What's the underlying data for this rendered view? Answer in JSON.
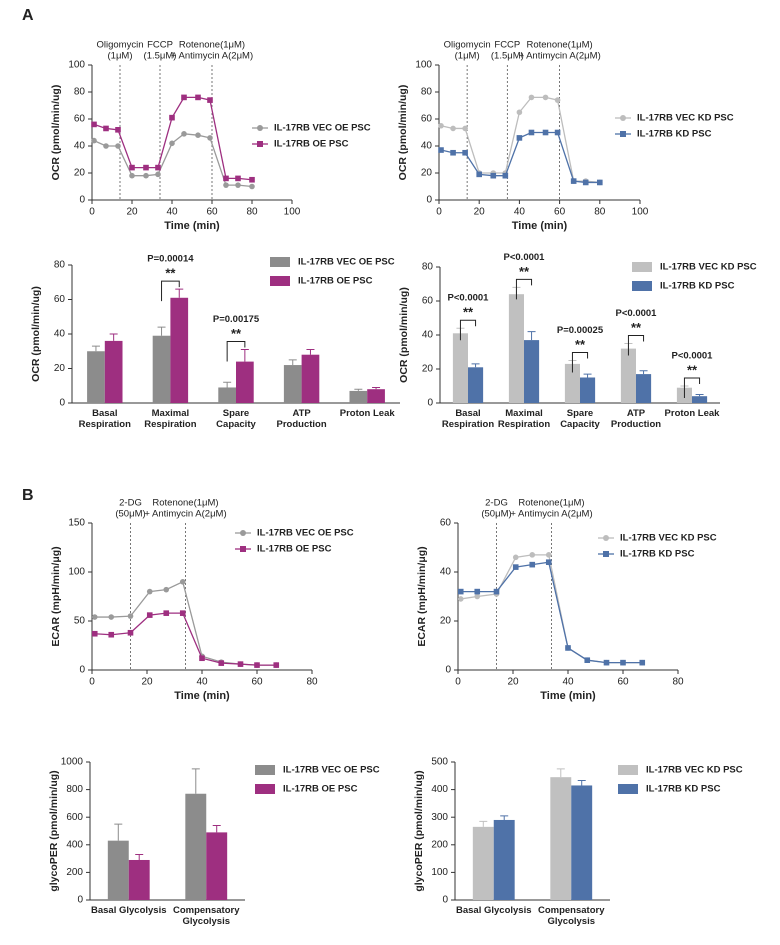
{
  "panel_labels": [
    "A",
    "B"
  ],
  "chart_data": [
    {
      "type": "line",
      "x_label": "Time (min)",
      "y_label": "OCR (pmol/min/ug)",
      "x": [
        1,
        7,
        13,
        20,
        27,
        33,
        40,
        46,
        53,
        59,
        67,
        73,
        80
      ],
      "xlim": [
        0,
        100
      ],
      "xticks": [
        0,
        20,
        40,
        60,
        80,
        100
      ],
      "ylim": [
        0,
        100
      ],
      "yticks": [
        0,
        20,
        40,
        60,
        80,
        100
      ],
      "annotations": [
        {
          "x": 14,
          "label": [
            "Oligomycin",
            "(1μM)"
          ]
        },
        {
          "x": 34,
          "label": [
            "FCCP",
            "(1.5μM)"
          ]
        },
        {
          "x": 60,
          "label": [
            "Rotenone(1μM)",
            "+ Antimycin A(2μM)"
          ]
        }
      ],
      "series": [
        {
          "name": "IL-17RB VEC OE PSC",
          "color": "#9a9a9a",
          "marker": "circle",
          "values": [
            44,
            40,
            40,
            18,
            18,
            19,
            42,
            49,
            48,
            46,
            11,
            11,
            10
          ]
        },
        {
          "name": "IL-17RB OE PSC",
          "color": "#9e2f80",
          "marker": "square",
          "values": [
            56,
            53,
            52,
            24,
            24,
            24,
            61,
            76,
            76,
            74,
            16,
            16,
            15
          ]
        }
      ]
    },
    {
      "type": "line",
      "x_label": "Time (min)",
      "y_label": "OCR (pmol/min/ug)",
      "x": [
        1,
        7,
        13,
        20,
        27,
        33,
        40,
        46,
        53,
        59,
        67,
        73,
        80
      ],
      "xlim": [
        0,
        100
      ],
      "xticks": [
        0,
        20,
        40,
        60,
        80,
        100
      ],
      "ylim": [
        0,
        100
      ],
      "yticks": [
        0,
        20,
        40,
        60,
        80,
        100
      ],
      "annotations": [
        {
          "x": 14,
          "label": [
            "Oligomycin",
            "(1μM)"
          ]
        },
        {
          "x": 34,
          "label": [
            "FCCP",
            "(1.5μM)"
          ]
        },
        {
          "x": 60,
          "label": [
            "Rotenone(1μM)",
            "+ Antimycin A(2μM)"
          ]
        }
      ],
      "series": [
        {
          "name": "IL-17RB VEC KD PSC",
          "color": "#bdbdbd",
          "marker": "circle",
          "values": [
            55,
            53,
            53,
            20,
            20,
            20,
            65,
            76,
            76,
            74,
            14,
            14,
            13
          ]
        },
        {
          "name": "IL-17RB KD PSC",
          "color": "#4f72a8",
          "marker": "square",
          "values": [
            37,
            35,
            35,
            19,
            18,
            18,
            46,
            50,
            50,
            50,
            14,
            13,
            13
          ]
        }
      ]
    },
    {
      "type": "bar",
      "y_label": "OCR (pmol/min/ug)",
      "categories": [
        "Basal Respiration",
        "Maximal Respiration",
        "Spare Capacity",
        "ATP Production",
        "Proton Leak"
      ],
      "ylim": [
        0,
        80
      ],
      "yticks": [
        0,
        20,
        40,
        60,
        80
      ],
      "p_values": [
        null,
        "P=0.00014",
        "P=0.00175",
        null,
        null
      ],
      "significance": [
        null,
        "**",
        "**",
        null,
        null
      ],
      "series": [
        {
          "name": "IL-17RB VEC OE PSC",
          "color": "#8c8c8c",
          "values": [
            30,
            39,
            9,
            22,
            7
          ],
          "errors": [
            3,
            5,
            3,
            3,
            1
          ]
        },
        {
          "name": "IL-17RB OE PSC",
          "color": "#9e2f80",
          "values": [
            36,
            61,
            24,
            28,
            8
          ],
          "errors": [
            4,
            5,
            7,
            3,
            1
          ]
        }
      ]
    },
    {
      "type": "bar",
      "y_label": "OCR (pmol/min/ug)",
      "categories": [
        "Basal Respiration",
        "Maximal Respiration",
        "Spare Capacity",
        "ATP Production",
        "Proton Leak"
      ],
      "ylim": [
        0,
        80
      ],
      "yticks": [
        0,
        20,
        40,
        60,
        80
      ],
      "p_values": [
        "P<0.0001",
        "P<0.0001",
        "P=0.00025",
        "P<0.0001",
        "P<0.0001"
      ],
      "significance": [
        "**",
        "**",
        "**",
        "**",
        "**"
      ],
      "series": [
        {
          "name": "IL-17RB VEC KD PSC",
          "color": "#c0c0c0",
          "values": [
            41,
            64,
            23,
            32,
            9
          ],
          "errors": [
            3,
            4,
            2,
            3,
            1
          ]
        },
        {
          "name": "IL-17RB KD PSC",
          "color": "#4f72a8",
          "values": [
            21,
            37,
            15,
            17,
            4
          ],
          "errors": [
            2,
            5,
            2,
            2,
            1
          ]
        }
      ]
    },
    {
      "type": "line",
      "x_label": "Time (min)",
      "y_label": "ECAR (mpH/min/μg)",
      "x": [
        1,
        7,
        14,
        21,
        27,
        33,
        40,
        47,
        54,
        60,
        67
      ],
      "xlim": [
        0,
        80
      ],
      "xticks": [
        0,
        20,
        40,
        60,
        80
      ],
      "ylim": [
        0,
        150
      ],
      "yticks": [
        0,
        50,
        100,
        150
      ],
      "annotations": [
        {
          "x": 14,
          "label": [
            "2-DG",
            "(50μM)"
          ]
        },
        {
          "x": 34,
          "label": [
            "Rotenone(1μM)",
            "+ Antimycin A(2μM)"
          ]
        }
      ],
      "series": [
        {
          "name": "IL-17RB VEC OE PSC",
          "color": "#9a9a9a",
          "marker": "circle",
          "values": [
            54,
            54,
            55,
            80,
            82,
            90,
            14,
            8,
            6,
            5,
            5
          ]
        },
        {
          "name": "IL-17RB OE PSC",
          "color": "#9e2f80",
          "marker": "square",
          "values": [
            37,
            36,
            38,
            56,
            58,
            58,
            12,
            7,
            6,
            5,
            5
          ]
        }
      ]
    },
    {
      "type": "line",
      "x_label": "Time (min)",
      "y_label": "ECAR (mpH/min/μg)",
      "x": [
        1,
        7,
        14,
        21,
        27,
        33,
        40,
        47,
        54,
        60,
        67
      ],
      "xlim": [
        0,
        80
      ],
      "xticks": [
        0,
        20,
        40,
        60,
        80
      ],
      "ylim": [
        0,
        60
      ],
      "yticks": [
        0,
        20,
        40,
        60
      ],
      "annotations": [
        {
          "x": 14,
          "label": [
            "2-DG",
            "(50μM)"
          ]
        },
        {
          "x": 34,
          "label": [
            "Rotenone(1μM)",
            "+ Antimycin A(2μM)"
          ]
        }
      ],
      "series": [
        {
          "name": "IL-17RB VEC KD PSC",
          "color": "#bdbdbd",
          "marker": "circle",
          "values": [
            29,
            30,
            31,
            46,
            47,
            47,
            9,
            4,
            3,
            3,
            3
          ]
        },
        {
          "name": "IL-17RB KD PSC",
          "color": "#4f72a8",
          "marker": "square",
          "values": [
            32,
            32,
            32,
            42,
            43,
            44,
            9,
            4,
            3,
            3,
            3
          ]
        }
      ]
    },
    {
      "type": "bar",
      "y_label": "glycoPER (pmol/min/ug)",
      "categories": [
        "Basal Glycolysis",
        "Compensatory Glycolysis"
      ],
      "ylim": [
        0,
        1000
      ],
      "yticks": [
        0,
        200,
        400,
        600,
        800,
        1000
      ],
      "series": [
        {
          "name": "IL-17RB VEC OE PSC",
          "color": "#8c8c8c",
          "values": [
            430,
            770
          ],
          "errors": [
            120,
            180
          ]
        },
        {
          "name": "IL-17RB OE PSC",
          "color": "#9e2f80",
          "values": [
            290,
            490
          ],
          "errors": [
            40,
            50
          ]
        }
      ]
    },
    {
      "type": "bar",
      "y_label": "glycoPER (pmol/min/ug)",
      "categories": [
        "Basal Glycolysis",
        "Compensatory Glycolysis"
      ],
      "ylim": [
        0,
        500
      ],
      "yticks": [
        0,
        100,
        200,
        300,
        400,
        500
      ],
      "series": [
        {
          "name": "IL-17RB VEC KD PSC",
          "color": "#c0c0c0",
          "values": [
            265,
            445
          ],
          "errors": [
            20,
            30
          ]
        },
        {
          "name": "IL-17RB KD PSC",
          "color": "#4f72a8",
          "values": [
            290,
            415
          ],
          "errors": [
            15,
            18
          ]
        }
      ]
    }
  ]
}
